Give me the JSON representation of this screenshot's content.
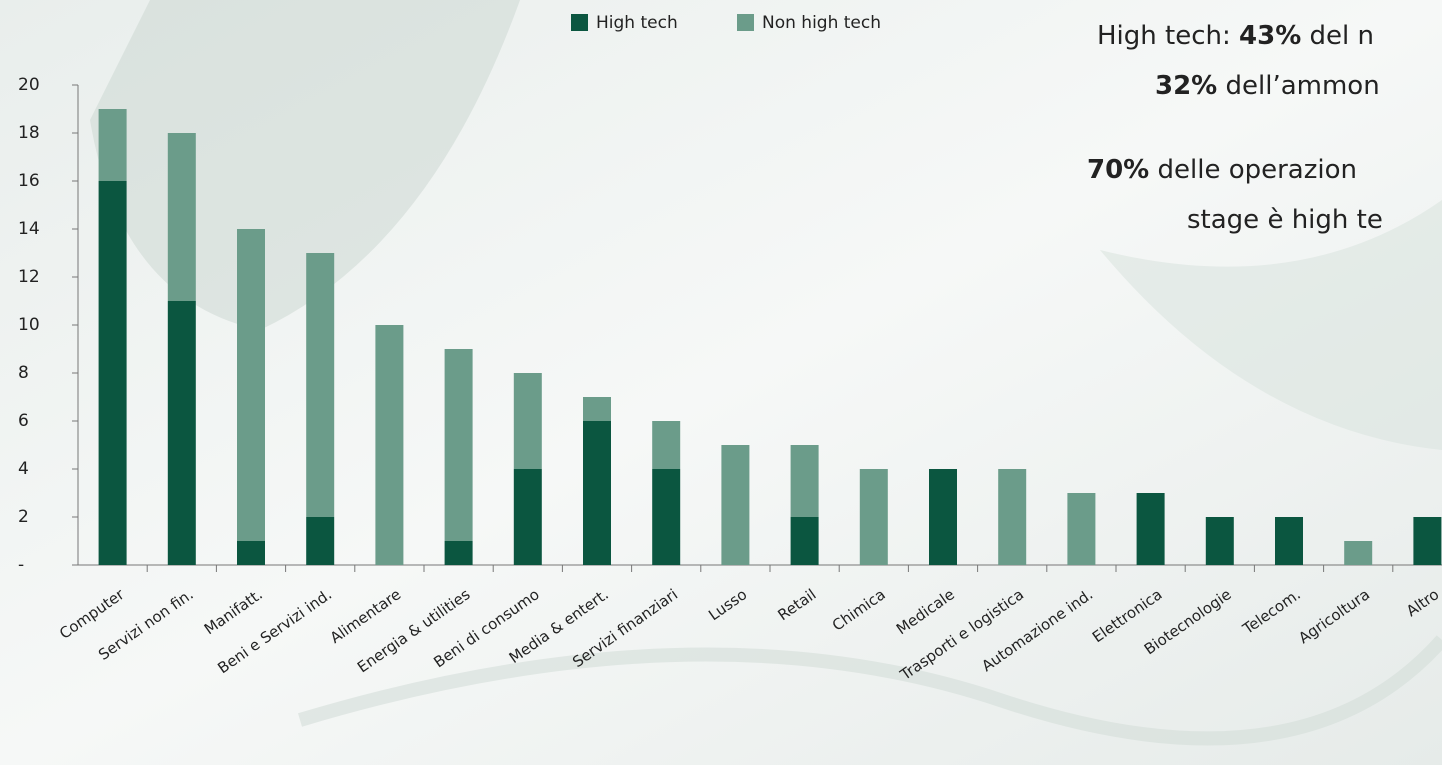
{
  "chart_data": {
    "type": "stacked_bar",
    "categories": [
      "Computer",
      "Servizi non fin.",
      "Manifatt.",
      "Beni e Servizi ind.",
      "Alimentare",
      "Energia & utilities",
      "Beni di consumo",
      "Media & entert.",
      "Servizi finanziari",
      "Lusso",
      "Retail",
      "Chimica",
      "Medicale",
      "Trasporti e logistica",
      "Automazione ind.",
      "Elettronica",
      "Biotecnologie",
      "Telecom.",
      "Agricoltura",
      "Altro"
    ],
    "series": [
      {
        "name": "High tech",
        "color": "#0b5640",
        "values": [
          16,
          11,
          1,
          2,
          0,
          1,
          4,
          6,
          4,
          0,
          2,
          0,
          4,
          0,
          0,
          3,
          2,
          2,
          0,
          2
        ]
      },
      {
        "name": "Non high tech",
        "color": "#6b9c8a",
        "values": [
          3,
          7,
          13,
          11,
          10,
          8,
          4,
          1,
          2,
          5,
          3,
          4,
          0,
          4,
          3,
          0,
          0,
          0,
          1,
          0
        ]
      }
    ],
    "ylim": [
      0,
      20
    ],
    "yticks": [
      {
        "value": 0,
        "label": "-"
      },
      2,
      4,
      6,
      8,
      10,
      12,
      14,
      16,
      18,
      20
    ],
    "legend": "top",
    "annotations": [
      [
        {
          "text": "High tech: "
        },
        {
          "text": "43%",
          "bold": true
        },
        {
          "text": " del n"
        }
      ],
      [
        {
          "text": "32%",
          "bold": true
        },
        {
          "text": " dell’ammon"
        }
      ],
      [
        {
          "text": "70%",
          "bold": true
        },
        {
          "text": " delle operazion"
        }
      ],
      [
        {
          "text": "stage è high te"
        }
      ]
    ]
  }
}
